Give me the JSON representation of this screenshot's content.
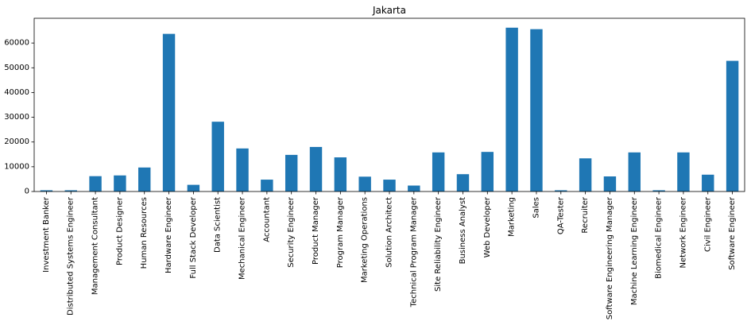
{
  "chart_data": {
    "type": "bar",
    "title": "Jakarta",
    "xlabel": "",
    "ylabel": "",
    "ylim": [
      0,
      70000
    ],
    "yticks": [
      0,
      10000,
      20000,
      30000,
      40000,
      50000,
      60000
    ],
    "grid": false,
    "bar_color": "#1f77b4",
    "categories": [
      "Investment Banker",
      "Distributed Systems Engineer",
      "Management Consultant",
      "Product Designer",
      "Human Resources",
      "Hardware Engineer",
      "Full Stack Developer",
      "Data Scientist",
      "Mechanical Engineer",
      "Accountant",
      "Security Engineer",
      "Product Manager",
      "Program Manager",
      "Marketing Operations",
      "Solution Architect",
      "Technical Program Manager",
      "Site Reliability Engineer",
      "Business Analyst",
      "Web Developer",
      "Marketing",
      "Sales",
      "QA-Tester",
      "Recruiter",
      "Software Engineering Manager",
      "Machine Learning Engineer",
      "Biomedical Engineer",
      "Network Engineer",
      "Civil Engineer",
      "Software Engineer"
    ],
    "values": [
      500,
      500,
      6200,
      6500,
      9700,
      63700,
      2700,
      28200,
      17400,
      4800,
      14800,
      18000,
      13800,
      6000,
      4800,
      2400,
      15800,
      7000,
      16000,
      66200,
      65600,
      500,
      13400,
      6100,
      15800,
      500,
      15800,
      6800,
      52800
    ]
  }
}
